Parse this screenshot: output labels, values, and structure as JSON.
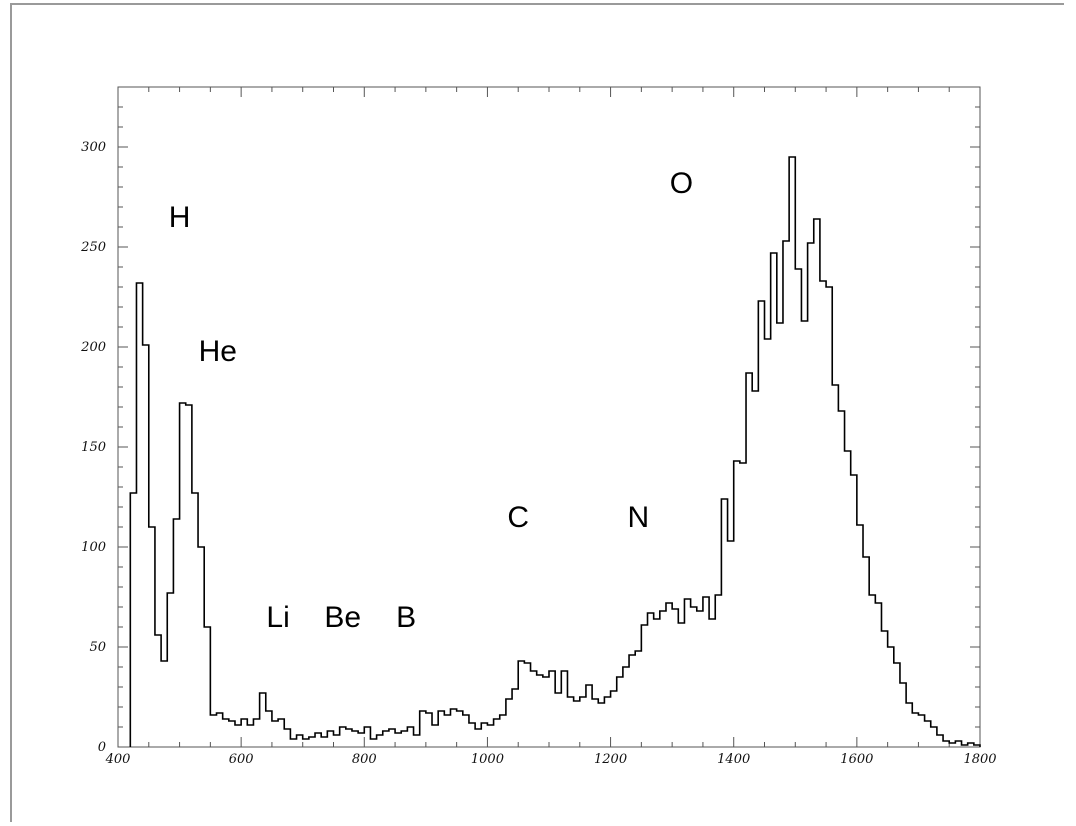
{
  "chart_data": {
    "type": "histogram",
    "title": "",
    "xlabel": "",
    "ylabel": "",
    "xlim": [
      400,
      1800
    ],
    "ylim": [
      0,
      330
    ],
    "x_ticks": [
      400,
      600,
      800,
      1000,
      1200,
      1400,
      1600,
      1800
    ],
    "y_ticks": [
      0,
      50,
      100,
      150,
      200,
      250,
      300
    ],
    "bin_width": 10,
    "bin_start": 420,
    "values": [
      127,
      232,
      201,
      110,
      56,
      43,
      77,
      114,
      172,
      171,
      127,
      100,
      60,
      16,
      17,
      14,
      13,
      11,
      14,
      11,
      14,
      27,
      18,
      13,
      14,
      9,
      4,
      6,
      4,
      5,
      7,
      5,
      8,
      6,
      10,
      9,
      8,
      7,
      10,
      4,
      6,
      8,
      9,
      7,
      8,
      10,
      6,
      18,
      17,
      11,
      18,
      16,
      19,
      18,
      16,
      12,
      9,
      12,
      11,
      14,
      16,
      24,
      29,
      43,
      42,
      38,
      36,
      35,
      38,
      27,
      38,
      25,
      23,
      25,
      31,
      24,
      22,
      25,
      28,
      35,
      40,
      46,
      48,
      61,
      67,
      64,
      68,
      72,
      69,
      62,
      74,
      70,
      68,
      75,
      64,
      76,
      124,
      103,
      143,
      142,
      187,
      178,
      223,
      204,
      247,
      212,
      253,
      295,
      239,
      213,
      252,
      264,
      233,
      230,
      181,
      168,
      148,
      136,
      111,
      95,
      76,
      72,
      58,
      50,
      42,
      32,
      22,
      17,
      16,
      13,
      10,
      6,
      3,
      2,
      3,
      1,
      2,
      1
    ],
    "annotations": [
      {
        "text": "H",
        "x": 500,
        "y": 260
      },
      {
        "text": "He",
        "x": 562,
        "y": 193
      },
      {
        "text": "Li",
        "x": 660,
        "y": 60
      },
      {
        "text": "Be",
        "x": 765,
        "y": 60
      },
      {
        "text": "B",
        "x": 868,
        "y": 60
      },
      {
        "text": "C",
        "x": 1050,
        "y": 110
      },
      {
        "text": "N",
        "x": 1245,
        "y": 110
      },
      {
        "text": "O",
        "x": 1315,
        "y": 277
      }
    ],
    "colors": {
      "line": "#000000",
      "axis": "#555555"
    },
    "grid": false,
    "legend": "none"
  }
}
